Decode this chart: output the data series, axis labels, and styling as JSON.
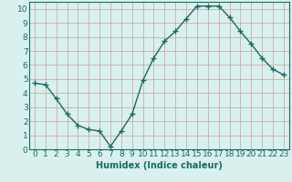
{
  "x": [
    0,
    1,
    2,
    3,
    4,
    5,
    6,
    7,
    8,
    9,
    10,
    11,
    12,
    13,
    14,
    15,
    16,
    17,
    18,
    19,
    20,
    21,
    22,
    23
  ],
  "y": [
    4.7,
    4.6,
    3.6,
    2.5,
    1.7,
    1.4,
    1.3,
    0.2,
    1.3,
    2.5,
    4.9,
    6.5,
    7.7,
    8.4,
    9.3,
    10.2,
    10.2,
    10.2,
    9.4,
    8.4,
    7.5,
    6.5,
    5.7,
    5.3
  ],
  "line_color": "#1a6b5e",
  "marker": "+",
  "marker_size": 4,
  "linewidth": 1.0,
  "xlabel": "Humidex (Indice chaleur)",
  "xlim": [
    -0.5,
    23.5
  ],
  "ylim": [
    0,
    10.5
  ],
  "yticks": [
    0,
    1,
    2,
    3,
    4,
    5,
    6,
    7,
    8,
    9,
    10
  ],
  "xticks": [
    0,
    1,
    2,
    3,
    4,
    5,
    6,
    7,
    8,
    9,
    10,
    11,
    12,
    13,
    14,
    15,
    16,
    17,
    18,
    19,
    20,
    21,
    22,
    23
  ],
  "grid_color": "#c8a0a0",
  "background_color": "#d8f0ee",
  "xlabel_fontsize": 7,
  "tick_fontsize": 6.5
}
